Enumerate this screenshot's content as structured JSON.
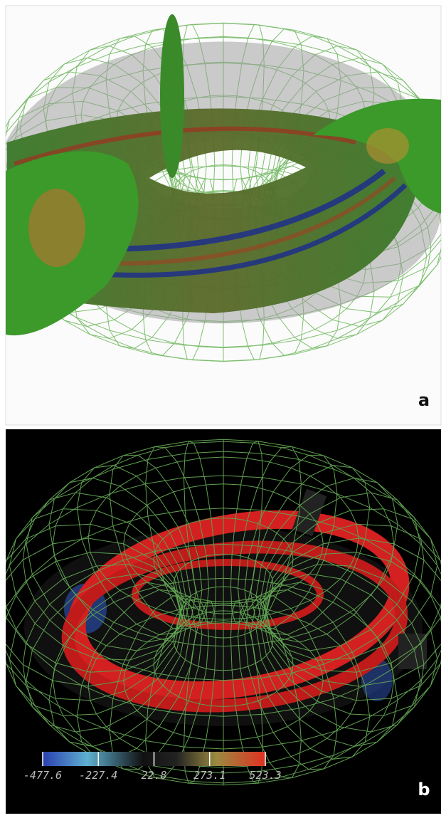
{
  "panel_a": {
    "label": "a"
  },
  "panel_b": {
    "label": "b",
    "colorbar": {
      "ticks": [
        "-477.6",
        "-227.4",
        "22.8",
        "273.1",
        "523.3"
      ]
    }
  }
}
